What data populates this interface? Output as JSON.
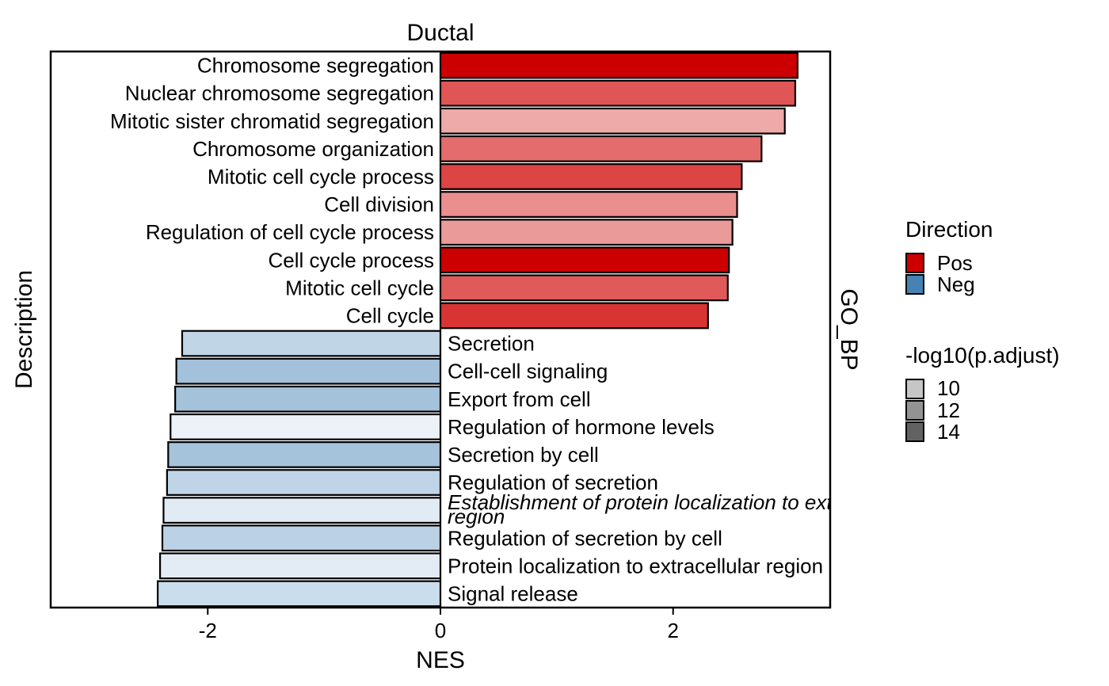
{
  "chart_data": {
    "type": "bar",
    "orientation": "horizontal",
    "panel_title": "Ductal",
    "facet_label": "GO_BP",
    "xlabel": "NES",
    "ylabel": "Description",
    "xlim": [
      -3.35,
      3.35
    ],
    "xticks": [
      "-2",
      "0",
      "2"
    ],
    "xtick_values": [
      -2,
      0,
      2
    ],
    "bars": [
      {
        "label": "Chromosome segregation",
        "value": 3.07,
        "direction": "Pos",
        "color": "#CC0000"
      },
      {
        "label": "Nuclear chromosome segregation",
        "value": 3.05,
        "direction": "Pos",
        "color": "#E05555"
      },
      {
        "label": "Mitotic sister chromatid segregation",
        "value": 2.96,
        "direction": "Pos",
        "color": "#EEA9A9"
      },
      {
        "label": "Chromosome organization",
        "value": 2.76,
        "direction": "Pos",
        "color": "#E46C6C"
      },
      {
        "label": "Mitotic cell cycle process",
        "value": 2.59,
        "direction": "Pos",
        "color": "#DD4444"
      },
      {
        "label": "Cell division",
        "value": 2.55,
        "direction": "Pos",
        "color": "#EA8E8E"
      },
      {
        "label": "Regulation of cell cycle process",
        "value": 2.51,
        "direction": "Pos",
        "color": "#EB9A9A"
      },
      {
        "label": "Cell cycle process",
        "value": 2.48,
        "direction": "Pos",
        "color": "#CC0000"
      },
      {
        "label": "Mitotic cell cycle",
        "value": 2.47,
        "direction": "Pos",
        "color": "#E05A5A"
      },
      {
        "label": "Cell cycle",
        "value": 2.3,
        "direction": "Pos",
        "color": "#D93434"
      },
      {
        "label": "Secretion",
        "value": -2.22,
        "direction": "Neg",
        "color": "#C0D5E6"
      },
      {
        "label": "Cell-cell signaling",
        "value": -2.27,
        "direction": "Neg",
        "color": "#A3C1DB"
      },
      {
        "label": "Export from cell",
        "value": -2.28,
        "direction": "Neg",
        "color": "#A5C2DB"
      },
      {
        "label": "Regulation of hormone levels",
        "value": -2.32,
        "direction": "Neg",
        "color": "#EDF2F9"
      },
      {
        "label": "Secretion by cell",
        "value": -2.34,
        "direction": "Neg",
        "color": "#A6C3DC"
      },
      {
        "label": "Regulation of secretion",
        "value": -2.35,
        "direction": "Neg",
        "color": "#BFD4E6"
      },
      {
        "label": "Establishment of protein localization to extracellular region",
        "value": -2.38,
        "direction": "Neg",
        "color": "#E1EBF4",
        "italic": true
      },
      {
        "label": "Regulation of secretion by cell",
        "value": -2.39,
        "direction": "Neg",
        "color": "#BBD1E5"
      },
      {
        "label": "Protein localization to extracellular region",
        "value": -2.41,
        "direction": "Neg",
        "color": "#E3ECF5"
      },
      {
        "label": "Signal release",
        "value": -2.43,
        "direction": "Neg",
        "color": "#CADDEC"
      }
    ],
    "legends": {
      "direction": {
        "title": "Direction",
        "items": [
          {
            "label": "Pos",
            "color": "#CC0000"
          },
          {
            "label": "Neg",
            "color": "#4682B4"
          }
        ]
      },
      "significance": {
        "title": "-log10(p.adjust)",
        "items": [
          {
            "label": "10",
            "color": "#C6C6C6"
          },
          {
            "label": "12",
            "color": "#939393"
          },
          {
            "label": "14",
            "color": "#626262"
          }
        ]
      }
    },
    "grid": false,
    "legend_position": "right"
  }
}
